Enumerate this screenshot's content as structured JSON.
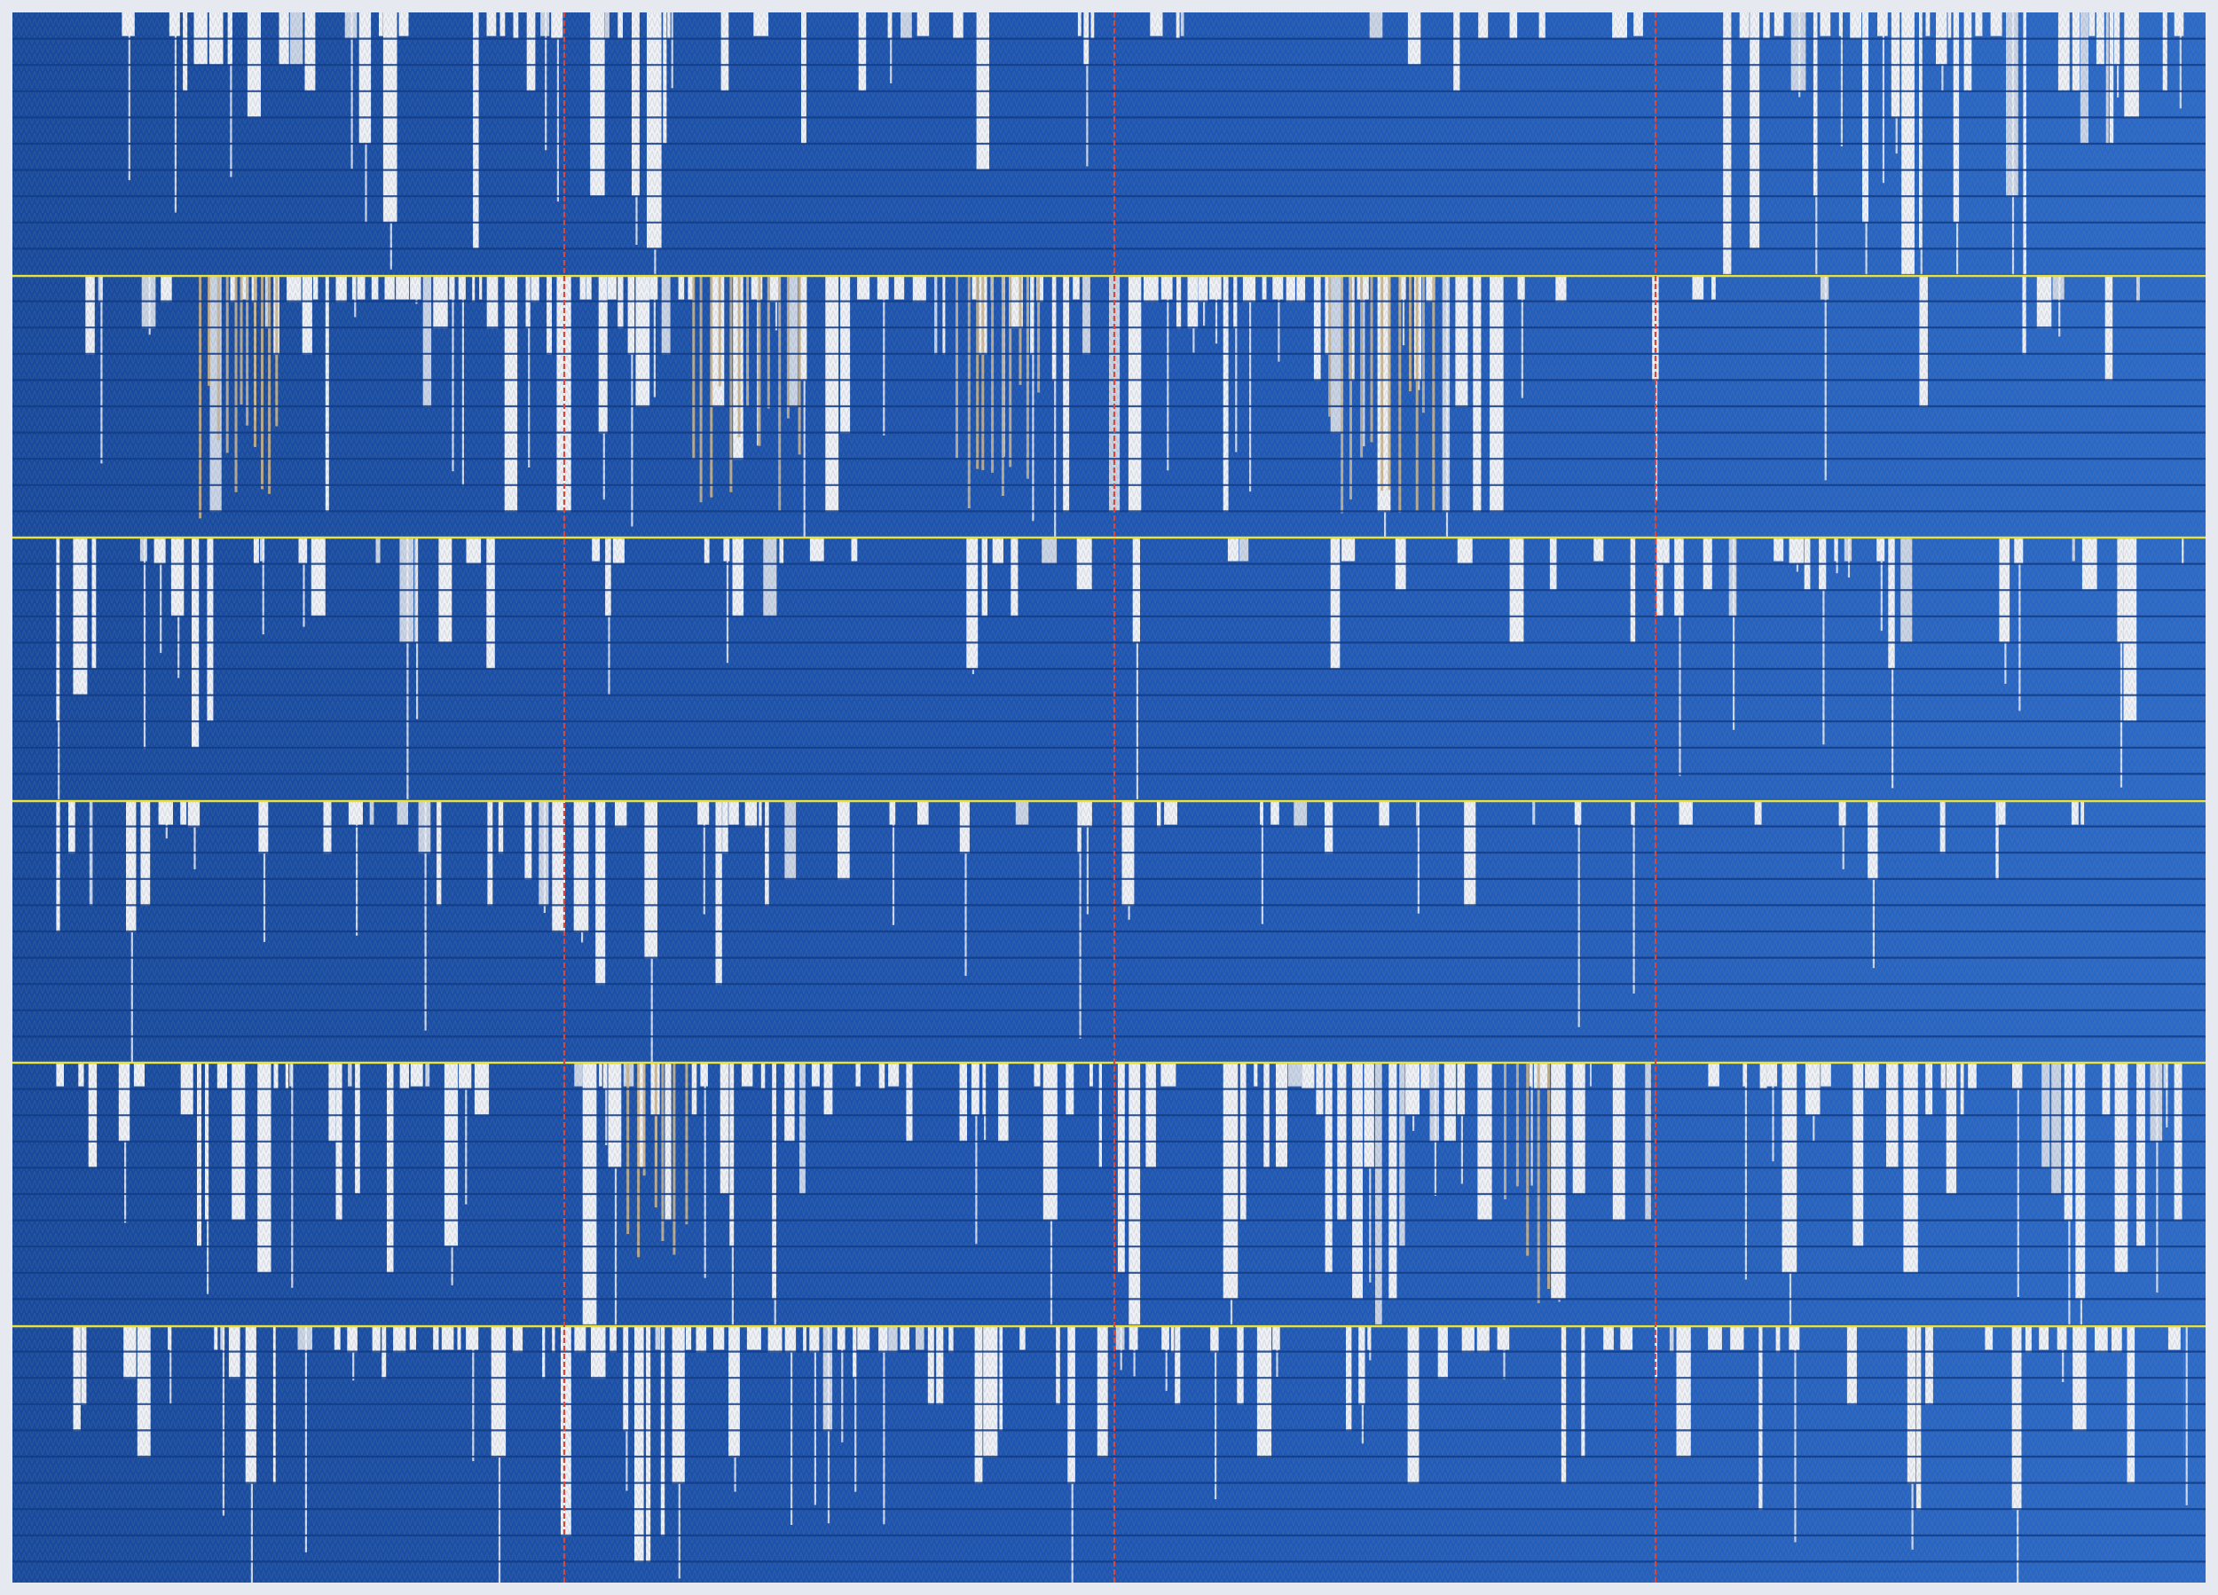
{
  "artwork": {
    "subject": "woven-textile-grid",
    "colors": {
      "ground": "#1d56b4",
      "ground_light": "#2a6ac9",
      "ground_dark": "#174a9e",
      "weft_white": "#eef1f6",
      "weft_white_shadow": "#c9d4e6",
      "metallic": "#c9b48f",
      "row_line_dark": "#123c86",
      "band_line_yellow": "#e8e23a",
      "warp_line_red": "#d8473a",
      "frame_edge": "#e6e9ef"
    },
    "bands": [
      {
        "clusters": [
          [
            0.03,
            0.2,
            0.5
          ],
          [
            0.21,
            0.3,
            0.7
          ],
          [
            0.3,
            0.48,
            0.35
          ],
          [
            0.48,
            0.78,
            0.15
          ],
          [
            0.78,
            0.92,
            0.9
          ],
          [
            0.92,
            0.99,
            0.6
          ]
        ],
        "metallic": []
      },
      {
        "clusters": [
          [
            0.02,
            0.09,
            0.45
          ],
          [
            0.09,
            0.3,
            0.95
          ],
          [
            0.3,
            0.5,
            0.75
          ],
          [
            0.5,
            0.68,
            1.0
          ],
          [
            0.68,
            0.69,
            0.25
          ],
          [
            0.69,
            0.74,
            0.1
          ],
          [
            0.74,
            0.99,
            0.25
          ]
        ],
        "metallic": [
          [
            0.085,
            0.12
          ],
          [
            0.31,
            0.36
          ],
          [
            0.43,
            0.47
          ],
          [
            0.6,
            0.65
          ]
        ]
      },
      {
        "clusters": [
          [
            0.02,
            0.11,
            0.45
          ],
          [
            0.11,
            0.28,
            0.25
          ],
          [
            0.28,
            0.5,
            0.1
          ],
          [
            0.5,
            0.74,
            0.12
          ],
          [
            0.74,
            0.85,
            0.35
          ],
          [
            0.85,
            0.99,
            0.45
          ]
        ],
        "metallic": []
      },
      {
        "clusters": [
          [
            0.02,
            0.08,
            0.35
          ],
          [
            0.08,
            0.24,
            0.2
          ],
          [
            0.24,
            0.36,
            0.45
          ],
          [
            0.36,
            0.64,
            0.18
          ],
          [
            0.64,
            0.99,
            0.05
          ]
        ],
        "metallic": []
      },
      {
        "clusters": [
          [
            0.02,
            0.1,
            0.4
          ],
          [
            0.1,
            0.26,
            0.55
          ],
          [
            0.26,
            0.37,
            0.75
          ],
          [
            0.37,
            0.47,
            0.3
          ],
          [
            0.47,
            0.72,
            0.65
          ],
          [
            0.72,
            0.8,
            0.4
          ],
          [
            0.8,
            0.99,
            0.65
          ]
        ],
        "metallic": [
          [
            0.28,
            0.31
          ],
          [
            0.68,
            0.7
          ]
        ]
      },
      {
        "clusters": [
          [
            0.02,
            0.12,
            0.35
          ],
          [
            0.12,
            0.25,
            0.5
          ],
          [
            0.25,
            0.45,
            0.75
          ],
          [
            0.45,
            0.55,
            0.25
          ],
          [
            0.55,
            0.75,
            0.35
          ],
          [
            0.75,
            0.99,
            0.45
          ]
        ],
        "metallic": []
      }
    ]
  }
}
